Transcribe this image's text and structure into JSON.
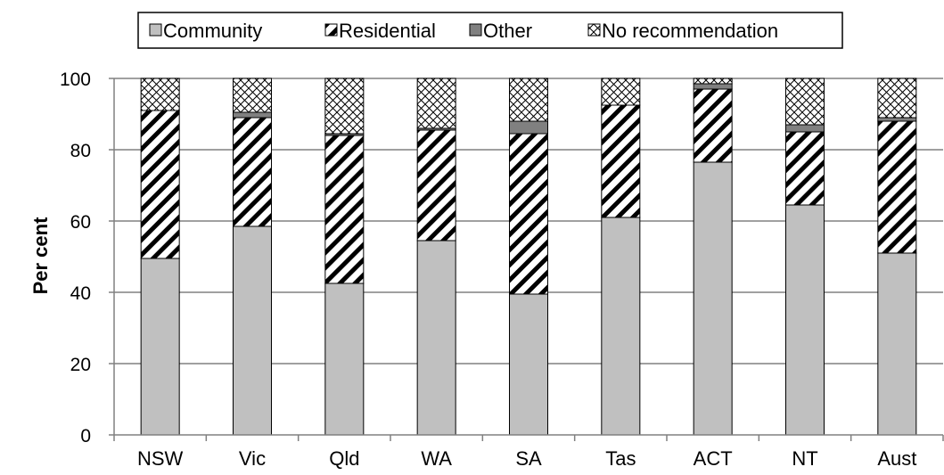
{
  "chart_data": {
    "type": "bar",
    "stacked": true,
    "ylabel": "Per cent",
    "xlabel": "",
    "ylim": [
      0,
      100
    ],
    "yticks": [
      "0",
      "20",
      "40",
      "60",
      "80",
      "100"
    ],
    "grid": true,
    "legend_position": "top",
    "categories": [
      "NSW",
      "Vic",
      "Qld",
      "WA",
      "SA",
      "Tas",
      "ACT",
      "NT",
      "Aust"
    ],
    "series": [
      {
        "name": "Community",
        "pattern": "solid-gray",
        "color": "#c0c0c0",
        "values": [
          49.5,
          58.5,
          42.5,
          54.5,
          39.5,
          61.0,
          76.5,
          64.5,
          51.0
        ]
      },
      {
        "name": "Residential",
        "pattern": "diagonal-hatch",
        "color": "#000000",
        "values": [
          41.5,
          30.5,
          41.5,
          31.0,
          45.0,
          31.5,
          20.5,
          20.5,
          37.0
        ]
      },
      {
        "name": "Other",
        "pattern": "solid-dark-gray",
        "color": "#808080",
        "values": [
          0.0,
          1.5,
          0.5,
          0.5,
          3.5,
          0.0,
          1.5,
          2.0,
          1.0
        ]
      },
      {
        "name": "No recommendation",
        "pattern": "crosshatch",
        "color": "#000000",
        "values": [
          9.0,
          9.5,
          15.5,
          14.0,
          12.0,
          7.5,
          1.5,
          13.0,
          11.0
        ]
      }
    ]
  }
}
